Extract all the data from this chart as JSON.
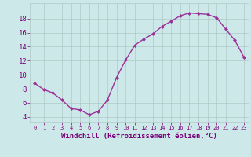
{
  "x": [
    0,
    1,
    2,
    3,
    4,
    5,
    6,
    7,
    8,
    9,
    10,
    11,
    12,
    13,
    14,
    15,
    16,
    17,
    18,
    19,
    20,
    21,
    22,
    23
  ],
  "y": [
    8.8,
    7.9,
    7.4,
    6.4,
    5.2,
    5.0,
    4.3,
    4.8,
    6.4,
    9.6,
    12.1,
    14.2,
    15.1,
    15.8,
    16.9,
    17.6,
    18.4,
    18.8,
    18.7,
    18.6,
    18.1,
    16.5,
    14.9,
    12.5
  ],
  "line_color": "#993399",
  "marker": "D",
  "marker_size": 2.0,
  "bg_color": "#cde8e8",
  "grid_color": "#b0c8c8",
  "xlabel": "Windchill (Refroidissement éolien,°C)",
  "ylabel_ticks": [
    4,
    6,
    8,
    10,
    12,
    14,
    16,
    18
  ],
  "xlim": [
    -0.5,
    23.5
  ],
  "ylim": [
    3.2,
    20.2
  ],
  "xlabel_color": "#7a007a",
  "tick_color": "#7a007a",
  "label_fontsize": 6.5,
  "tick_fontsize_x": 5.0,
  "tick_fontsize_y": 6.5,
  "linewidth": 1.0
}
